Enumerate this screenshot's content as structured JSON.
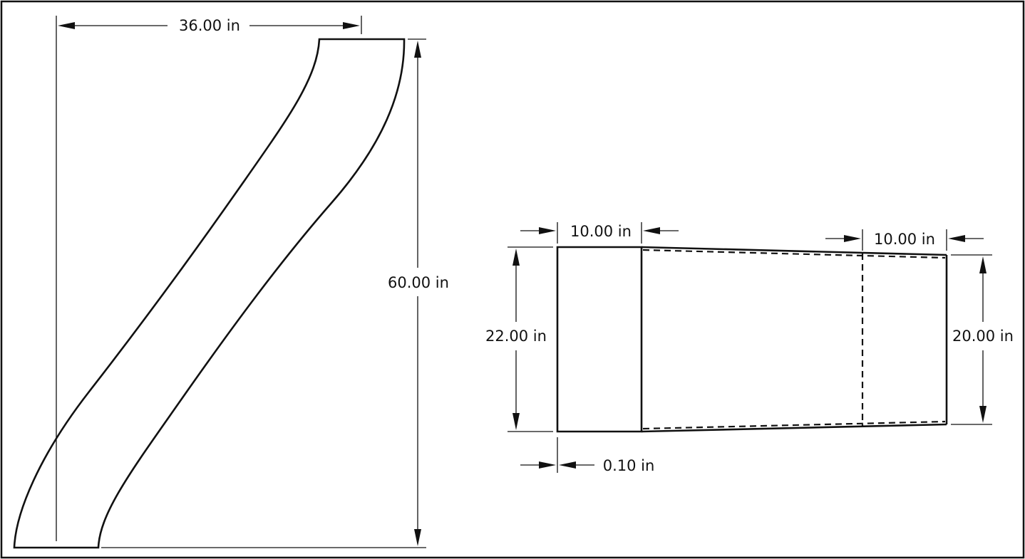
{
  "dimensions": {
    "horizontal_offset": "36.00 in",
    "vertical_height": "60.00 in",
    "inlet_length": "10.00 in",
    "outlet_length": "10.00 in",
    "inlet_diameter": "22.00 in",
    "outlet_diameter": "20.00 in",
    "wall_thickness": "0.10 in"
  }
}
